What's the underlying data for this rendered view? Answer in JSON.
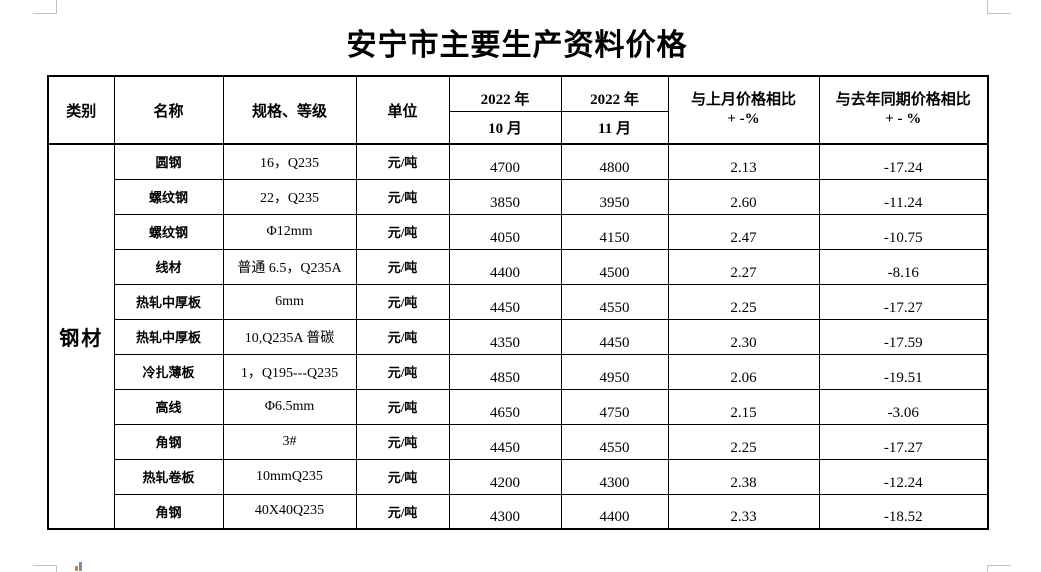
{
  "page": {
    "title": "安宁市主要生产资料价格"
  },
  "table": {
    "headers": {
      "category": "类别",
      "name": "名称",
      "spec": "规格、等级",
      "unit": "单位",
      "oct_year": "2022 年",
      "oct_month": "10 月",
      "nov_year": "2022 年",
      "nov_month": "11 月",
      "mom_line1": "与上月价格相比",
      "mom_line2": "+ -%",
      "yoy_line1": "与去年同期价格相比",
      "yoy_line2": "+ - %"
    },
    "category_label": "钢材",
    "rows": [
      {
        "name": "圆钢",
        "spec": "16，Q235",
        "unit": "元/吨",
        "oct": "4700",
        "nov": "4800",
        "mom": "2.13",
        "yoy": "-17.24"
      },
      {
        "name": "螺纹钢",
        "spec": "22，Q235",
        "unit": "元/吨",
        "oct": "3850",
        "nov": "3950",
        "mom": "2.60",
        "yoy": "-11.24"
      },
      {
        "name": "螺纹钢",
        "spec": "Φ12mm",
        "unit": "元/吨",
        "oct": "4050",
        "nov": "4150",
        "mom": "2.47",
        "yoy": "-10.75"
      },
      {
        "name": "线材",
        "spec": "普通 6.5，Q235A",
        "unit": "元/吨",
        "oct": "4400",
        "nov": "4500",
        "mom": "2.27",
        "yoy": "-8.16"
      },
      {
        "name": "热轧中厚板",
        "spec": "6mm",
        "unit": "元/吨",
        "oct": "4450",
        "nov": "4550",
        "mom": "2.25",
        "yoy": "-17.27"
      },
      {
        "name": "热轧中厚板",
        "spec": "10,Q235A 普碳",
        "unit": "元/吨",
        "oct": "4350",
        "nov": "4450",
        "mom": "2.30",
        "yoy": "-17.59"
      },
      {
        "name": "冷扎薄板",
        "spec": "1，Q195---Q235",
        "unit": "元/吨",
        "oct": "4850",
        "nov": "4950",
        "mom": "2.06",
        "yoy": "-19.51"
      },
      {
        "name": "高线",
        "spec": "Φ6.5mm",
        "unit": "元/吨",
        "oct": "4650",
        "nov": "4750",
        "mom": "2.15",
        "yoy": "-3.06"
      },
      {
        "name": "角钢",
        "spec": "3#",
        "unit": "元/吨",
        "oct": "4450",
        "nov": "4550",
        "mom": "2.25",
        "yoy": "-17.27"
      },
      {
        "name": "热轧卷板",
        "spec": "10mmQ235",
        "unit": "元/吨",
        "oct": "4200",
        "nov": "4300",
        "mom": "2.38",
        "yoy": "-12.24"
      },
      {
        "name": "角钢",
        "spec": "40X40Q235",
        "unit": "元/吨",
        "oct": "4300",
        "nov": "4400",
        "mom": "2.33",
        "yoy": "-18.52"
      }
    ]
  }
}
